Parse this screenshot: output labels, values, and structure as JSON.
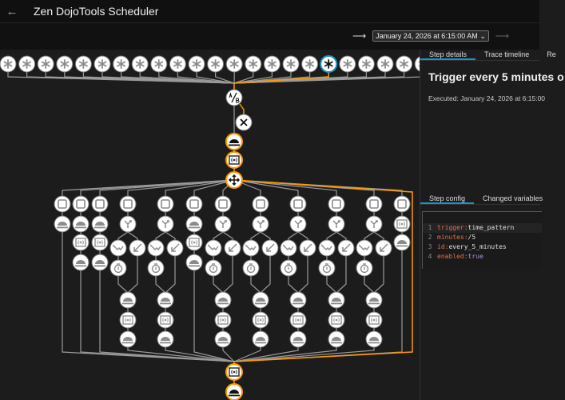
{
  "header": {
    "title": "Zen DojoTools Scheduler",
    "back_icon": "arrow-left-icon"
  },
  "toolbar": {
    "prev_icon": "arrow-prev-icon",
    "selected_run": "January 24, 2026 at 6:15:00 AM",
    "dropdown_icon": "chevron-down-icon",
    "next_icon": "arrow-next-icon"
  },
  "panel": {
    "tabs": [
      "Step details",
      "Trace timeline",
      "Re"
    ],
    "title": "Trigger every 5 minutes o",
    "executed": "Executed: January 24, 2026 at 6:15:00",
    "config_tabs": [
      "Step config",
      "Changed variables"
    ],
    "code": [
      {
        "n": "1",
        "key": "trigger:",
        "value": " time_pattern",
        "vtype": "str"
      },
      {
        "n": "2",
        "key": "minutes:",
        "value": " /5",
        "vtype": "str"
      },
      {
        "n": "3",
        "key": "id:",
        "value": " every_5_minutes",
        "vtype": "plain"
      },
      {
        "n": "4",
        "key": "enabled:",
        "value": " true",
        "vtype": "bool"
      }
    ]
  },
  "graph": {
    "colors": {
      "active": "#ff9800",
      "selected": "#1c94c7",
      "edge": "#9a9a9a",
      "node": "#ffffff",
      "icon": "#8a8a8a"
    },
    "trigger_count": 23,
    "selected_trigger": 17,
    "main_chain": [
      "choose",
      "stop",
      "event",
      "variables",
      "parallel"
    ],
    "columns": [
      "A",
      "B",
      "B",
      "C",
      "C",
      "B",
      "C",
      "C",
      "C",
      "C",
      "C",
      "D"
    ],
    "column_types": {
      "A": [
        "sequence",
        "event"
      ],
      "B": [
        "sequence",
        "event",
        "variables",
        "event"
      ],
      "C": [
        "sequence",
        "choose-branch",
        "condition",
        "action",
        "delay",
        "event",
        "variables",
        "event"
      ],
      "D": [
        "sequence",
        "variables",
        "event"
      ]
    },
    "tail": [
      "variables",
      "event"
    ]
  }
}
